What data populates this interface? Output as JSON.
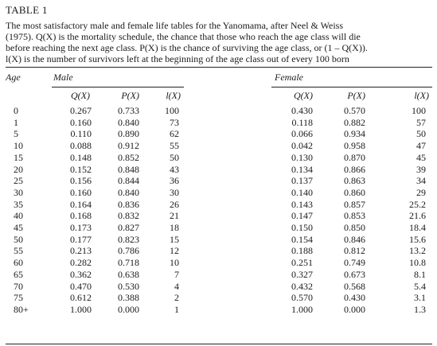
{
  "table_title": "TABLE 1",
  "caption_lines": [
    "The most satisfactory male and female life tables for the Yanomama, after Neel & Weiss",
    "(1975). Q(X) is the mortality schedule, the chance that those who reach the age class will die",
    "before reaching the next age class. P(X) is the chance of surviving the age class, or (1 – Q(X)).",
    "l(X) is the number of survivors left at the beginning of the age class out of every 100 born"
  ],
  "header": {
    "age": "Age",
    "male": "Male",
    "female": "Female",
    "columns": [
      "Q(X)",
      "P(X)",
      "l(X)",
      "Q(X)",
      "P(X)",
      "l(X)"
    ]
  },
  "rows": [
    [
      "0",
      "0.267",
      "0.733",
      "100",
      "0.430",
      "0.570",
      "100"
    ],
    [
      "1",
      "0.160",
      "0.840",
      "73",
      "0.118",
      "0.882",
      "57"
    ],
    [
      "5",
      "0.110",
      "0.890",
      "62",
      "0.066",
      "0.934",
      "50"
    ],
    [
      "10",
      "0.088",
      "0.912",
      "55",
      "0.042",
      "0.958",
      "47"
    ],
    [
      "15",
      "0.148",
      "0.852",
      "50",
      "0.130",
      "0.870",
      "45"
    ],
    [
      "20",
      "0.152",
      "0.848",
      "43",
      "0.134",
      "0.866",
      "39"
    ],
    [
      "25",
      "0.156",
      "0.844",
      "36",
      "0.137",
      "0.863",
      "34"
    ],
    [
      "30",
      "0.160",
      "0.840",
      "30",
      "0.140",
      "0.860",
      "29"
    ],
    [
      "35",
      "0.164",
      "0.836",
      "26",
      "0.143",
      "0.857",
      "25.2"
    ],
    [
      "40",
      "0.168",
      "0.832",
      "21",
      "0.147",
      "0.853",
      "21.6"
    ],
    [
      "45",
      "0.173",
      "0.827",
      "18",
      "0.150",
      "0.850",
      "18.4"
    ],
    [
      "50",
      "0.177",
      "0.823",
      "15",
      "0.154",
      "0.846",
      "15.6"
    ],
    [
      "55",
      "0.213",
      "0.786",
      "12",
      "0.188",
      "0.812",
      "13.2"
    ],
    [
      "60",
      "0.282",
      "0.718",
      "10",
      "0.251",
      "0.749",
      "10.8"
    ],
    [
      "65",
      "0.362",
      "0.638",
      "7",
      "0.327",
      "0.673",
      "8.1"
    ],
    [
      "70",
      "0.470",
      "0.530",
      "4",
      "0.432",
      "0.568",
      "5.4"
    ],
    [
      "75",
      "0.612",
      "0.388",
      "2",
      "0.570",
      "0.430",
      "3.1"
    ],
    [
      "80+",
      "1.000",
      "0.000",
      "1",
      "1.000",
      "0.000",
      "1.3"
    ]
  ]
}
